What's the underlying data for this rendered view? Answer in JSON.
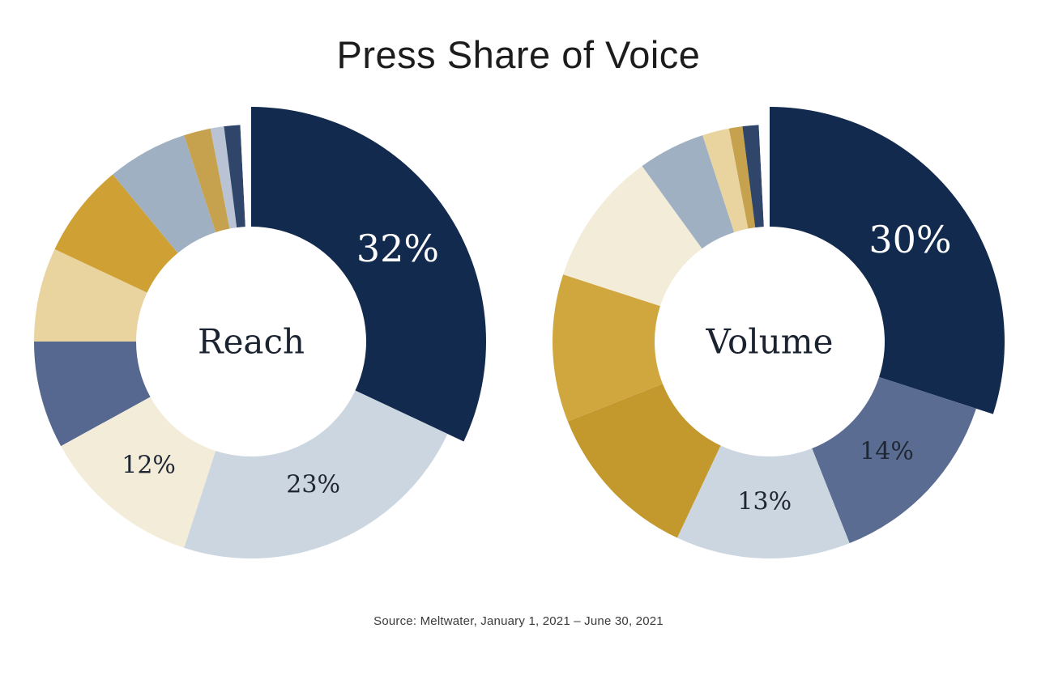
{
  "title": "Press Share of Voice",
  "source": "Source: Meltwater, January 1, 2021 – June 30, 2021",
  "colors": {
    "navy": "#122a4d",
    "navy_sliver": "#2f4569",
    "light_blue_gray": "#ccd6e1",
    "cream": "#f3ecd9",
    "slate_blue": "#56688f",
    "tan_gold": "#e9d4a0",
    "gold": "#cfa135",
    "dark_gold": "#c3992d",
    "blue_gray": "#9fb0c3",
    "gold_sliver": "#c6a14e",
    "label_dark": "#1f2733",
    "label_light": "#ffffff"
  },
  "chart_data": [
    {
      "type": "pie",
      "subtype": "donut",
      "title": "Reach",
      "center_label": "Reach",
      "legend_position": "none",
      "start_angle_deg": 0,
      "direction": "clockwise",
      "slices": [
        {
          "value": 32,
          "label": "32%",
          "color": "#122a4d",
          "label_color": "#ffffff",
          "label_size": 46,
          "label_r": 0.8,
          "emphasized": true
        },
        {
          "value": 23,
          "label": "23%",
          "color": "#ccd6e1",
          "label_color": "#1f2733",
          "label_size": 30,
          "label_r": 0.72
        },
        {
          "value": 12,
          "label": "12%",
          "color": "#f3ecd9",
          "label_color": "#1f2733",
          "label_size": 30,
          "label_r": 0.74
        },
        {
          "value": 8,
          "color": "#56688f"
        },
        {
          "value": 7,
          "color": "#e9d4a0"
        },
        {
          "value": 7,
          "color": "#cfa135"
        },
        {
          "value": 6,
          "color": "#9fb0c3"
        },
        {
          "value": 2,
          "color": "#c6a14e"
        },
        {
          "value": 1,
          "color": "#b9c3d3"
        },
        {
          "value": 1.2,
          "color": "#2f4569"
        },
        {
          "value": 0.8,
          "color": "#ffffff",
          "gap": true
        }
      ]
    },
    {
      "type": "pie",
      "subtype": "donut",
      "title": "Volume",
      "center_label": "Volume",
      "legend_position": "none",
      "start_angle_deg": 0,
      "direction": "clockwise",
      "slices": [
        {
          "value": 30,
          "label": "30%",
          "color": "#122a4d",
          "label_color": "#ffffff",
          "label_size": 46,
          "label_r": 0.8,
          "emphasized": true
        },
        {
          "value": 14,
          "label": "14%",
          "color": "#5a6c92",
          "label_color": "#1f2733",
          "label_size": 30,
          "label_r": 0.74
        },
        {
          "value": 13,
          "label": "13%",
          "color": "#ccd6e1",
          "label_color": "#1f2733",
          "label_size": 30,
          "label_r": 0.74
        },
        {
          "value": 12,
          "color": "#c3992d"
        },
        {
          "value": 11,
          "color": "#d0a63e"
        },
        {
          "value": 10,
          "color": "#f3ecd9"
        },
        {
          "value": 5,
          "color": "#9fb0c3"
        },
        {
          "value": 2,
          "color": "#e9d4a0"
        },
        {
          "value": 1,
          "color": "#c6a14e"
        },
        {
          "value": 1.2,
          "color": "#2f4569"
        },
        {
          "value": 0.8,
          "color": "#ffffff",
          "gap": true
        }
      ]
    }
  ]
}
